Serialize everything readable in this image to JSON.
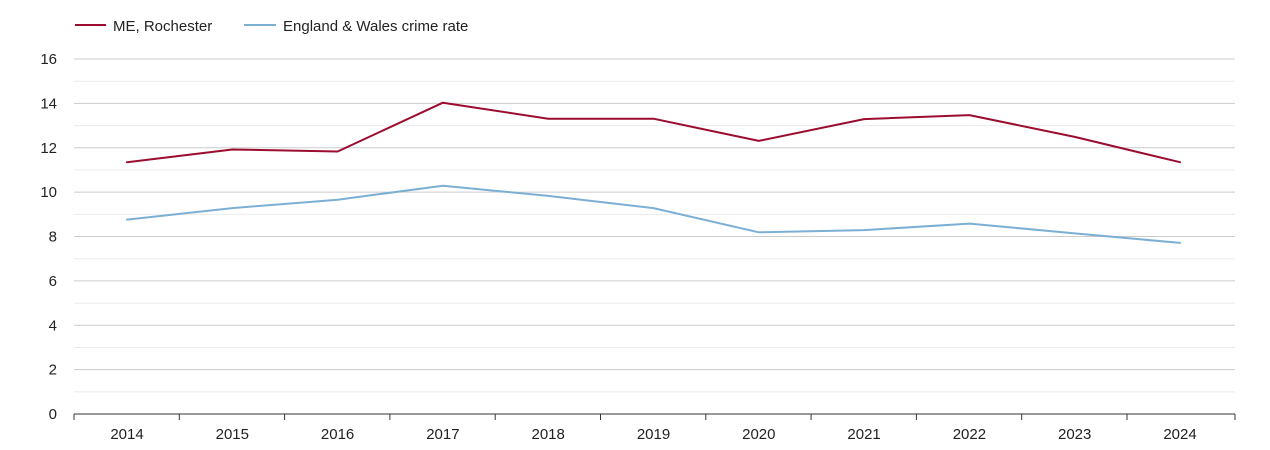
{
  "chart_data": {
    "type": "line",
    "title": "",
    "xlabel": "",
    "ylabel": "",
    "x": [
      "2014",
      "2015",
      "2016",
      "2017",
      "2018",
      "2019",
      "2020",
      "2021",
      "2022",
      "2023",
      "2024"
    ],
    "ylim": [
      0,
      16
    ],
    "yticks": [
      0,
      2,
      4,
      6,
      8,
      10,
      12,
      14,
      16
    ],
    "grid": true,
    "legend_position": "top-left",
    "series": [
      {
        "name": "ME, Rochester",
        "color": "#9b0c2f",
        "values": [
          11.35,
          11.92,
          11.83,
          14.03,
          13.31,
          13.31,
          12.31,
          13.29,
          13.47,
          12.49,
          11.35
        ]
      },
      {
        "name": "England & Wales crime rate",
        "color": "#7bafd4",
        "values": [
          8.76,
          9.28,
          9.66,
          10.29,
          9.83,
          9.28,
          8.19,
          8.29,
          8.58,
          8.14,
          7.71
        ]
      }
    ]
  }
}
